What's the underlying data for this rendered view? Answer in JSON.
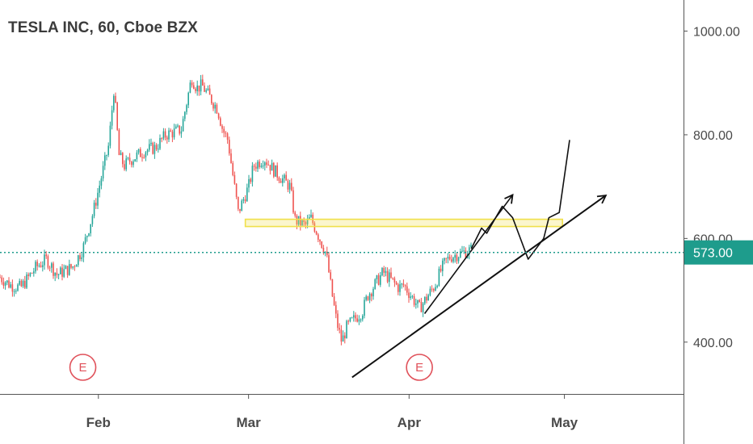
{
  "header": {
    "title": "TESLA INC, 60, Cboe BZX"
  },
  "colors": {
    "up": "#26a69a",
    "down": "#ef5350",
    "price_line": "#1e9c8c",
    "zone": "#f0e04a",
    "drawing": "#111111",
    "earnings": "#e0515a"
  },
  "chart_data": {
    "type": "candlestick",
    "title": "TESLA INC, 60, Cboe BZX",
    "ylim": [
      300,
      1060
    ],
    "y_ticks": [
      {
        "value": 400,
        "label": "400.00"
      },
      {
        "value": 600,
        "label": "600.00"
      },
      {
        "value": 800,
        "label": "800.00"
      },
      {
        "value": 1000,
        "label": "1000.00"
      }
    ],
    "x_ticks": [
      {
        "label": "Feb",
        "date": "2020-02-01"
      },
      {
        "label": "Mar",
        "date": "2020-03-01"
      },
      {
        "label": "Apr",
        "date": "2020-04-01"
      },
      {
        "label": "May",
        "date": "2020-05-01"
      }
    ],
    "x_range": [
      "2020-01-13",
      "2020-05-24"
    ],
    "current_price": {
      "value": 573,
      "label": "573.00"
    },
    "earnings_markers": [
      {
        "date": "2020-01-29",
        "label": "E"
      },
      {
        "date": "2020-04-03",
        "label": "E"
      }
    ],
    "price_path": [
      [
        "2020-01-13",
        525
      ],
      [
        "2020-01-15",
        510
      ],
      [
        "2020-01-17",
        505
      ],
      [
        "2020-01-20",
        545
      ],
      [
        "2020-01-22",
        560
      ],
      [
        "2020-01-24",
        530
      ],
      [
        "2020-01-27",
        545
      ],
      [
        "2020-01-29",
        580
      ],
      [
        "2020-01-31",
        650
      ],
      [
        "2020-02-03",
        780
      ],
      [
        "2020-02-04",
        890
      ],
      [
        "2020-02-05",
        760
      ],
      [
        "2020-02-06",
        740
      ],
      [
        "2020-02-07",
        750
      ],
      [
        "2020-02-10",
        770
      ],
      [
        "2020-02-12",
        775
      ],
      [
        "2020-02-14",
        800
      ],
      [
        "2020-02-17",
        810
      ],
      [
        "2020-02-19",
        910
      ],
      [
        "2020-02-20",
        890
      ],
      [
        "2020-02-21",
        895
      ],
      [
        "2020-02-24",
        850
      ],
      [
        "2020-02-25",
        810
      ],
      [
        "2020-02-26",
        790
      ],
      [
        "2020-02-27",
        720
      ],
      [
        "2020-02-28",
        650
      ],
      [
        "2020-03-01",
        700
      ],
      [
        "2020-03-02",
        740
      ],
      [
        "2020-03-04",
        755
      ],
      [
        "2020-03-06",
        730
      ],
      [
        "2020-03-09",
        700
      ],
      [
        "2020-03-10",
        635
      ],
      [
        "2020-03-12",
        625
      ],
      [
        "2020-03-13",
        640
      ],
      [
        "2020-03-16",
        570
      ],
      [
        "2020-03-17",
        500
      ],
      [
        "2020-03-18",
        440
      ],
      [
        "2020-03-19",
        400
      ],
      [
        "2020-03-20",
        430
      ],
      [
        "2020-03-23",
        460
      ],
      [
        "2020-03-24",
        490
      ],
      [
        "2020-03-26",
        520
      ],
      [
        "2020-03-27",
        535
      ],
      [
        "2020-03-30",
        505
      ],
      [
        "2020-03-31",
        510
      ],
      [
        "2020-04-02",
        480
      ],
      [
        "2020-04-03",
        465
      ],
      [
        "2020-04-06",
        510
      ],
      [
        "2020-04-07",
        535
      ],
      [
        "2020-04-08",
        555
      ],
      [
        "2020-04-09",
        565
      ],
      [
        "2020-04-13",
        578
      ]
    ],
    "zone": {
      "y_low": 623,
      "y_high": 637,
      "start": "2020-03-01",
      "end": "2020-04-30"
    },
    "drawings": {
      "trendline": [
        [
          "2020-03-21",
          332
        ],
        [
          "2020-05-09",
          683
        ]
      ],
      "arrow_short": [
        [
          "2020-04-04",
          455
        ],
        [
          "2020-04-21",
          684
        ]
      ],
      "zigzag": [
        [
          "2020-04-13",
          580
        ],
        [
          "2020-04-15",
          620
        ],
        [
          "2020-04-16",
          610
        ],
        [
          "2020-04-18",
          645
        ],
        [
          "2020-04-19",
          662
        ],
        [
          "2020-04-21",
          640
        ],
        [
          "2020-04-24",
          560
        ],
        [
          "2020-04-27",
          600
        ],
        [
          "2020-04-28",
          640
        ],
        [
          "2020-04-30",
          650
        ],
        [
          "2020-05-02",
          790
        ]
      ]
    }
  }
}
